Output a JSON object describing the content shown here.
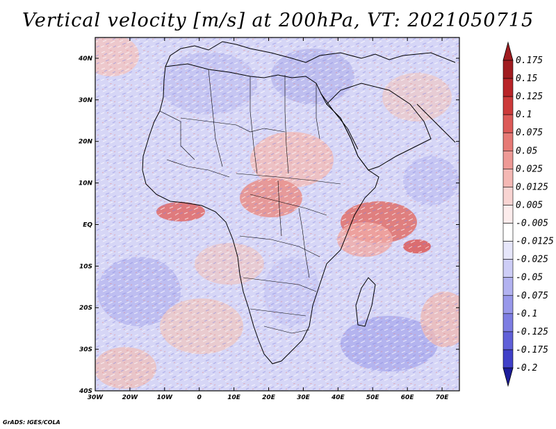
{
  "title": "Vertical velocity [m/s] at 200hPa, VT: 2021050715",
  "footer": "GrADS: IGES/COLA",
  "map": {
    "lon_range": [
      -30,
      75
    ],
    "lat_range": [
      -40,
      45
    ],
    "lon_ticks": [
      {
        "value": -30,
        "label": "30W"
      },
      {
        "value": -20,
        "label": "20W"
      },
      {
        "value": -10,
        "label": "10W"
      },
      {
        "value": 0,
        "label": "0"
      },
      {
        "value": 10,
        "label": "10E"
      },
      {
        "value": 20,
        "label": "20E"
      },
      {
        "value": 30,
        "label": "30E"
      },
      {
        "value": 40,
        "label": "40E"
      },
      {
        "value": 50,
        "label": "50E"
      },
      {
        "value": 60,
        "label": "60E"
      },
      {
        "value": 70,
        "label": "70E"
      }
    ],
    "lat_ticks": [
      {
        "value": 40,
        "label": "40N"
      },
      {
        "value": 30,
        "label": "30N"
      },
      {
        "value": 20,
        "label": "20N"
      },
      {
        "value": 10,
        "label": "10N"
      },
      {
        "value": 0,
        "label": "EQ"
      },
      {
        "value": -10,
        "label": "10S"
      },
      {
        "value": -20,
        "label": "20S"
      },
      {
        "value": -30,
        "label": "30S"
      },
      {
        "value": -40,
        "label": "40S"
      }
    ]
  },
  "colorbar": {
    "levels": [
      {
        "label": "0.175",
        "color": "#a01c20"
      },
      {
        "label": "0.15",
        "color": "#b82428"
      },
      {
        "label": "0.125",
        "color": "#cc3a3a"
      },
      {
        "label": "0.1",
        "color": "#dc5a58"
      },
      {
        "label": "0.075",
        "color": "#e67a76"
      },
      {
        "label": "0.05",
        "color": "#ee9a96"
      },
      {
        "label": "0.025",
        "color": "#f4b8b4"
      },
      {
        "label": "0.0125",
        "color": "#f8d4d2"
      },
      {
        "label": "0.005",
        "color": "#fcecec"
      },
      {
        "label": "-0.005",
        "color": "#ffffff"
      },
      {
        "label": "-0.0125",
        "color": "#e6e6fa"
      },
      {
        "label": "-0.025",
        "color": "#cdcdf6"
      },
      {
        "label": "-0.05",
        "color": "#b2b2f0"
      },
      {
        "label": "-0.075",
        "color": "#9898ea"
      },
      {
        "label": "-0.1",
        "color": "#7d7de2"
      },
      {
        "label": "-0.125",
        "color": "#6060d8"
      },
      {
        "label": "-0.175",
        "color": "#4040c8"
      },
      {
        "label": "-0.2",
        "color": "#2a2ab8"
      }
    ],
    "top_color": "#a01c20",
    "bottom_color": "#1c1c9a"
  }
}
